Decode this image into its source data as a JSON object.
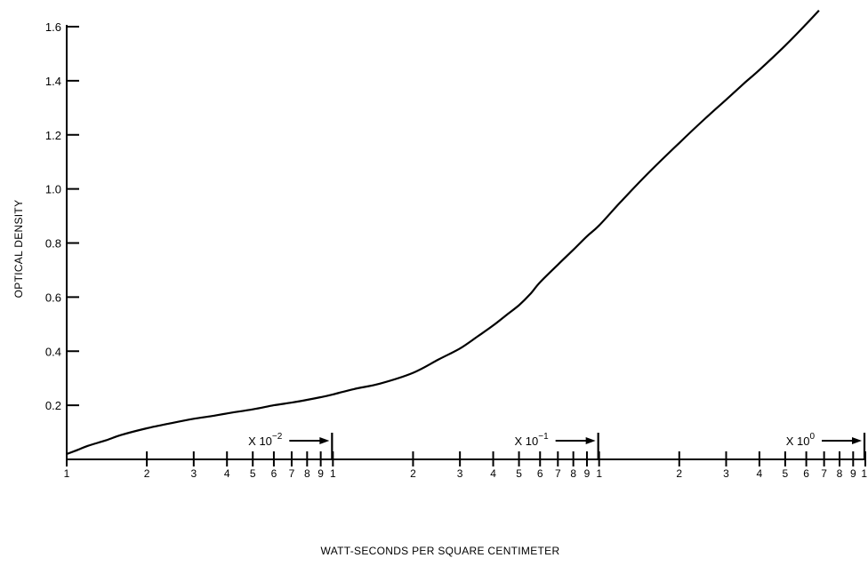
{
  "chart_data": {
    "type": "line",
    "title": "",
    "xlabel": "WATT-SECONDS PER SQUARE CENTIMETER",
    "ylabel": "OPTICAL DENSITY",
    "x_scale": "log",
    "xlim": [
      0.01,
      10
    ],
    "ylim": [
      0,
      1.6
    ],
    "grid": false,
    "y_ticks": [
      {
        "value": 0.2,
        "label": "0.2"
      },
      {
        "value": 0.4,
        "label": "0.4"
      },
      {
        "value": 0.6,
        "label": "0.6"
      },
      {
        "value": 0.8,
        "label": "0.8"
      },
      {
        "value": 1.0,
        "label": "1.0"
      },
      {
        "value": 1.2,
        "label": "1.2"
      },
      {
        "value": 1.4,
        "label": "1.4"
      },
      {
        "value": 1.6,
        "label": "1.6"
      }
    ],
    "x_ticks": [
      {
        "value": 0.01,
        "label": "1"
      },
      {
        "value": 0.02,
        "label": "2"
      },
      {
        "value": 0.03,
        "label": "3"
      },
      {
        "value": 0.04,
        "label": "4"
      },
      {
        "value": 0.05,
        "label": "5"
      },
      {
        "value": 0.06,
        "label": "6"
      },
      {
        "value": 0.07,
        "label": "7"
      },
      {
        "value": 0.08,
        "label": "8"
      },
      {
        "value": 0.09,
        "label": "9"
      },
      {
        "value": 0.1,
        "label": "1"
      },
      {
        "value": 0.2,
        "label": "2"
      },
      {
        "value": 0.3,
        "label": "3"
      },
      {
        "value": 0.4,
        "label": "4"
      },
      {
        "value": 0.5,
        "label": "5"
      },
      {
        "value": 0.6,
        "label": "6"
      },
      {
        "value": 0.7,
        "label": "7"
      },
      {
        "value": 0.8,
        "label": "8"
      },
      {
        "value": 0.9,
        "label": "9"
      },
      {
        "value": 1,
        "label": "1"
      },
      {
        "value": 2,
        "label": "2"
      },
      {
        "value": 3,
        "label": "3"
      },
      {
        "value": 4,
        "label": "4"
      },
      {
        "value": 5,
        "label": "5"
      },
      {
        "value": 6,
        "label": "6"
      },
      {
        "value": 7,
        "label": "7"
      },
      {
        "value": 8,
        "label": "8"
      },
      {
        "value": 9,
        "label": "9"
      },
      {
        "value": 10,
        "label": "1"
      }
    ],
    "decade_markers": [
      {
        "end": 0.1,
        "base": "X 10",
        "exponent": "−2"
      },
      {
        "end": 1,
        "base": "X 10",
        "exponent": "−1"
      },
      {
        "end": 10,
        "base": "X 10",
        "exponent": "0"
      }
    ],
    "series": [
      {
        "x": [
          0.01,
          0.011,
          0.012,
          0.014,
          0.016,
          0.02,
          0.025,
          0.03,
          0.035,
          0.04,
          0.05,
          0.06,
          0.07,
          0.08,
          0.09,
          0.1,
          0.12,
          0.15,
          0.2,
          0.25,
          0.3,
          0.35,
          0.4,
          0.45,
          0.5,
          0.55,
          0.6,
          0.7,
          0.8,
          0.9,
          1.0,
          1.2,
          1.5,
          2.0,
          2.5,
          3.0,
          3.5,
          4.0,
          5.0,
          6.0,
          6.7
        ],
        "y": [
          0.02,
          0.035,
          0.05,
          0.07,
          0.09,
          0.115,
          0.135,
          0.15,
          0.16,
          0.17,
          0.185,
          0.2,
          0.21,
          0.22,
          0.23,
          0.24,
          0.26,
          0.28,
          0.32,
          0.37,
          0.41,
          0.455,
          0.495,
          0.535,
          0.57,
          0.61,
          0.655,
          0.72,
          0.775,
          0.825,
          0.865,
          0.95,
          1.05,
          1.17,
          1.26,
          1.33,
          1.39,
          1.44,
          1.53,
          1.61,
          1.66
        ]
      }
    ]
  }
}
